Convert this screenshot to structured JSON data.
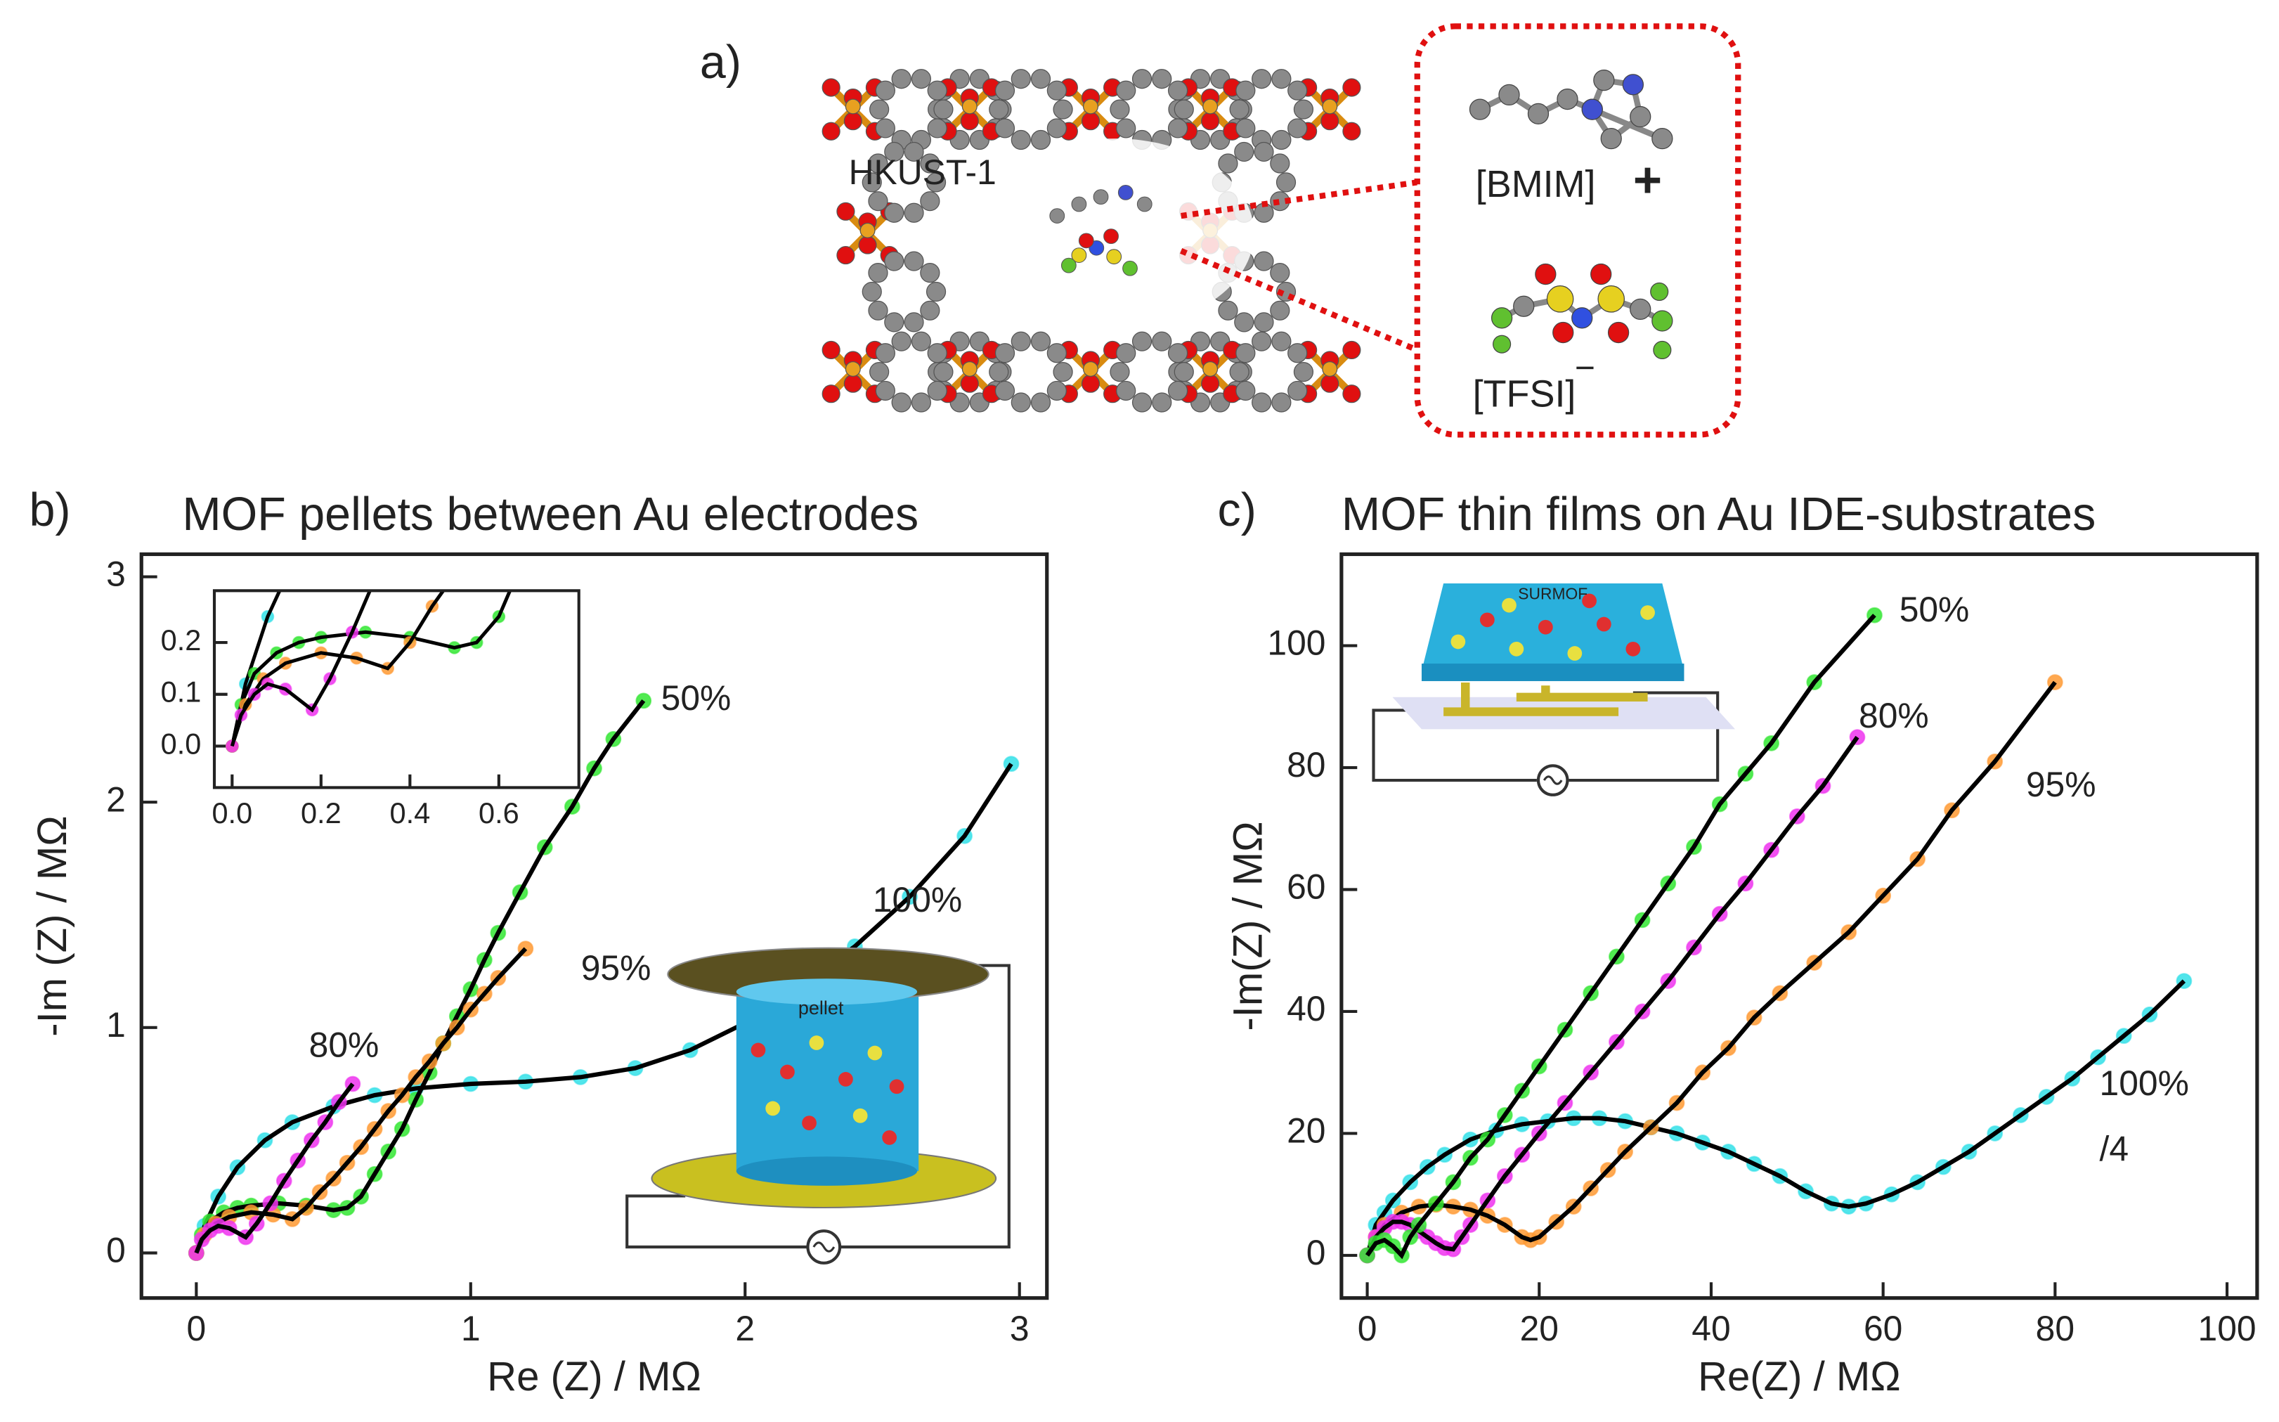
{
  "panel_a": {
    "label": "a)",
    "framework": "HKUST-1",
    "cation": "[BMIM]",
    "cation_charge": "+",
    "anion": "[TFSI]",
    "anion_charge": "−"
  },
  "chart_data": [
    {
      "type": "scatter",
      "panel": "b)",
      "title": "MOF pellets between Au electrodes",
      "xlabel": "Re (Z) / MΩ",
      "ylabel": "-Im (Z) / MΩ",
      "xlim": [
        -0.2,
        3.1
      ],
      "ylim": [
        -0.2,
        3.1
      ],
      "xticks": [
        0,
        1,
        2,
        3
      ],
      "yticks": [
        0,
        1,
        2,
        3
      ],
      "schematic_label": "pellet",
      "series": [
        {
          "name": "100%",
          "color": "#33e0e8",
          "x": [
            0,
            0.03,
            0.08,
            0.15,
            0.25,
            0.35,
            0.5,
            0.65,
            0.8,
            1.0,
            1.2,
            1.4,
            1.6,
            1.8,
            2.0,
            2.2,
            2.4,
            2.6,
            2.8,
            2.97
          ],
          "values": [
            0,
            0.12,
            0.25,
            0.38,
            0.5,
            0.58,
            0.65,
            0.7,
            0.73,
            0.75,
            0.76,
            0.78,
            0.82,
            0.9,
            1.02,
            1.18,
            1.36,
            1.58,
            1.85,
            2.17
          ]
        },
        {
          "name": "50%",
          "color": "#33e633",
          "x": [
            0,
            0.02,
            0.05,
            0.1,
            0.15,
            0.2,
            0.3,
            0.4,
            0.5,
            0.55,
            0.6,
            0.65,
            0.7,
            0.75,
            0.8,
            0.85,
            0.9,
            0.95,
            1.0,
            1.05,
            1.1,
            1.18,
            1.27,
            1.37,
            1.45,
            1.52,
            1.63
          ],
          "values": [
            0,
            0.08,
            0.14,
            0.18,
            0.2,
            0.21,
            0.22,
            0.21,
            0.19,
            0.2,
            0.25,
            0.35,
            0.45,
            0.55,
            0.68,
            0.8,
            0.93,
            1.05,
            1.17,
            1.3,
            1.42,
            1.6,
            1.8,
            1.98,
            2.15,
            2.28,
            2.45
          ]
        },
        {
          "name": "95%",
          "color": "#ff9a33",
          "x": [
            0,
            0.03,
            0.07,
            0.12,
            0.2,
            0.28,
            0.35,
            0.4,
            0.45,
            0.5,
            0.55,
            0.6,
            0.65,
            0.7,
            0.75,
            0.8,
            0.85,
            0.9,
            0.95,
            1.0,
            1.05,
            1.1,
            1.2
          ],
          "values": [
            0,
            0.08,
            0.13,
            0.16,
            0.18,
            0.17,
            0.15,
            0.2,
            0.27,
            0.33,
            0.4,
            0.47,
            0.55,
            0.63,
            0.7,
            0.78,
            0.85,
            0.93,
            1.0,
            1.08,
            1.15,
            1.22,
            1.35
          ]
        },
        {
          "name": "80%",
          "color": "#ee33ee",
          "x": [
            0,
            0.02,
            0.05,
            0.08,
            0.12,
            0.18,
            0.22,
            0.27,
            0.32,
            0.37,
            0.42,
            0.47,
            0.52,
            0.57
          ],
          "values": [
            0,
            0.06,
            0.1,
            0.12,
            0.11,
            0.07,
            0.13,
            0.22,
            0.32,
            0.41,
            0.5,
            0.58,
            0.67,
            0.75
          ]
        }
      ],
      "inset": {
        "xlim": [
          -0.04,
          0.78
        ],
        "ylim": [
          -0.08,
          0.3
        ],
        "xticks": [
          {
            "value": 0,
            "label": "0.0"
          },
          0.2,
          0.4,
          0.6
        ],
        "yticks": [
          {
            "value": 0,
            "label": "0.0"
          },
          0.1,
          0.2
        ]
      }
    },
    {
      "type": "scatter",
      "panel": "c)",
      "title": "MOF thin films on Au IDE-substrates",
      "xlabel": "Re(Z) / MΩ",
      "ylabel": "-Im(Z) / MΩ",
      "xlim": [
        -3,
        103.5
      ],
      "ylim": [
        -7,
        115
      ],
      "xticks": [
        0,
        20,
        40,
        60,
        80,
        100
      ],
      "yticks": [
        0,
        20,
        40,
        60,
        80,
        100
      ],
      "schematic_label": "SURMOF",
      "series": [
        {
          "name": "100%",
          "note": "/4",
          "color": "#33e0e8",
          "x": [
            0,
            1,
            2,
            3,
            5,
            7,
            9,
            12,
            15,
            18,
            21,
            24,
            27,
            30,
            33,
            36,
            39,
            42,
            45,
            48,
            51,
            54,
            56,
            58,
            61,
            64,
            67,
            70,
            73,
            76,
            79,
            82,
            85,
            88,
            91,
            95
          ],
          "values": [
            0,
            5,
            7,
            9,
            12,
            14.5,
            16.5,
            19,
            20.5,
            21.5,
            22,
            22.5,
            22.5,
            22,
            21,
            20,
            18.5,
            17,
            15,
            13,
            10.5,
            8.5,
            8,
            8.5,
            10,
            12,
            14.5,
            17,
            20,
            23,
            26,
            29,
            32.5,
            36,
            39.5,
            45
          ]
        },
        {
          "name": "95%",
          "color": "#ff9a33",
          "x": [
            0,
            1,
            2,
            4,
            6,
            8,
            10,
            12,
            14,
            16,
            18,
            19,
            20,
            22,
            24,
            26,
            28,
            30,
            33,
            36,
            39,
            42,
            45,
            48,
            52,
            56,
            60,
            64,
            68,
            73,
            80
          ],
          "values": [
            0,
            3,
            5,
            7,
            8,
            8.3,
            8,
            7.5,
            6.5,
            5,
            3,
            2.5,
            3,
            5.5,
            8,
            11,
            14,
            17,
            21,
            25,
            30,
            34,
            39,
            43,
            48,
            53,
            59,
            65,
            73,
            81,
            94
          ]
        },
        {
          "name": "80%",
          "color": "#ee33ee",
          "x": [
            0,
            1,
            2,
            3,
            4,
            5,
            6,
            7,
            8,
            9,
            10,
            11,
            12,
            14,
            16,
            18,
            20,
            23,
            26,
            29,
            32,
            35,
            38,
            41,
            44,
            47,
            50,
            53,
            57
          ],
          "values": [
            0,
            3,
            4.5,
            5.5,
            5.5,
            5,
            4,
            3,
            2,
            1.2,
            1,
            3,
            5,
            9,
            13,
            16.5,
            20,
            25,
            30,
            35,
            40,
            45,
            50.5,
            56,
            61,
            66.5,
            72,
            77,
            85
          ]
        },
        {
          "name": "50%",
          "color": "#33e633",
          "x": [
            0,
            1,
            2,
            3,
            4,
            5,
            6,
            8,
            10,
            12,
            14,
            16,
            18,
            20,
            23,
            26,
            29,
            32,
            35,
            38,
            41,
            44,
            47,
            52,
            59
          ],
          "values": [
            0,
            2,
            2.5,
            1.5,
            0,
            3,
            5,
            8.5,
            12,
            16,
            19,
            23,
            27,
            31,
            37,
            43,
            49,
            55,
            61,
            67,
            74,
            79,
            84,
            94,
            105
          ]
        }
      ]
    }
  ]
}
